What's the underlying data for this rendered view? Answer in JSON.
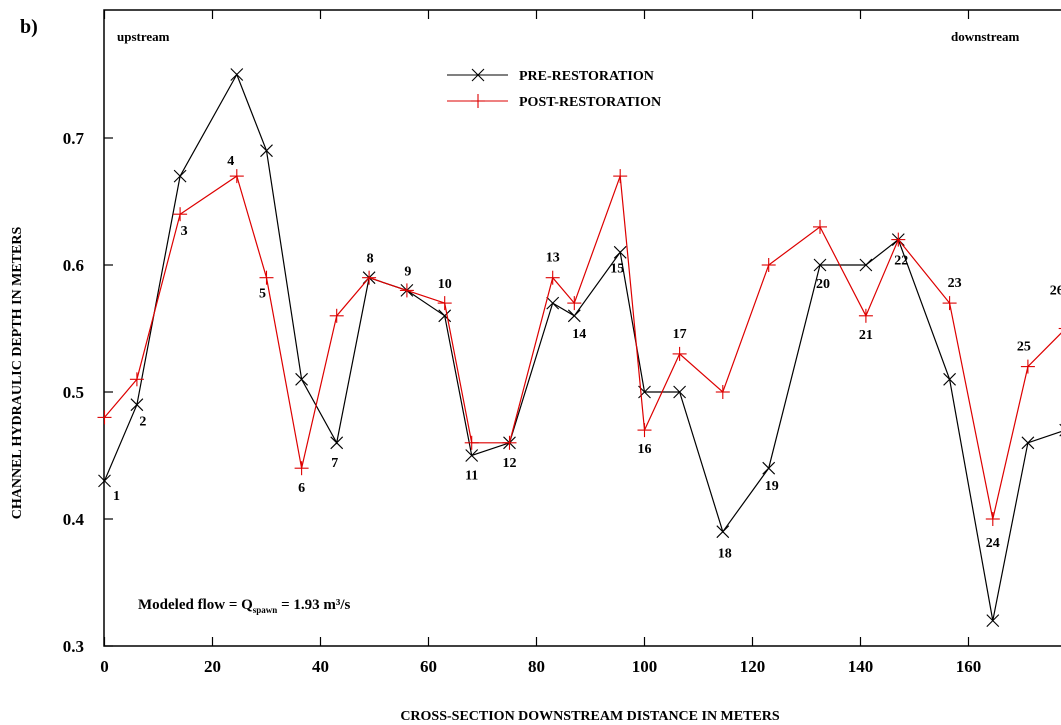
{
  "panel_label": "b)",
  "upstream_label": "upstream",
  "downstream_label": "downstream",
  "note": {
    "prefix": "Modeled flow = Q",
    "subscript": "spawn",
    "suffix": " = 1.93 m³/s"
  },
  "chart_data": {
    "type": "line",
    "xlabel": "CROSS-SECTION DOWNSTREAM DISTANCE IN METERS",
    "ylabel": "CHANNEL HYDRAULIC DEPTH IN METERS",
    "xlim": [
      0,
      178
    ],
    "ylim": [
      0.3,
      0.8
    ],
    "xticks": [
      0,
      20,
      40,
      60,
      80,
      100,
      120,
      140,
      160
    ],
    "yticks": [
      0.3,
      0.4,
      0.5,
      0.6,
      0.7
    ],
    "ytick_labels": [
      "0.3",
      "0.4",
      "0.5",
      "0.6",
      "0.7"
    ],
    "grid": false,
    "legend_position": "top-center",
    "x": [
      0,
      6,
      14,
      24.5,
      30,
      36.5,
      43,
      49,
      56,
      63,
      68,
      75,
      83,
      87,
      95.5,
      100,
      106.5,
      114.5,
      123,
      132.5,
      141,
      147,
      156.5,
      164.5,
      171,
      178
    ],
    "cross_section_labels": [
      "1",
      "2",
      "3",
      "4",
      "5",
      "6",
      "7",
      "8",
      "9",
      "10",
      "11",
      "12",
      "13",
      "14",
      "15",
      "16",
      "17",
      "18",
      "19",
      "20",
      "21",
      "22",
      "23",
      "24",
      "25",
      "26"
    ],
    "series": [
      {
        "name": "PRE-RESTORATION",
        "color": "#000000",
        "marker": "x",
        "values": [
          0.43,
          0.49,
          0.67,
          0.75,
          0.69,
          0.51,
          0.46,
          0.59,
          0.58,
          0.56,
          0.45,
          0.46,
          0.57,
          0.56,
          0.61,
          0.5,
          0.5,
          0.39,
          0.44,
          0.6,
          0.6,
          0.62,
          0.51,
          0.32,
          0.46,
          0.47
        ]
      },
      {
        "name": "POST-RESTORATION",
        "color": "#dd0000",
        "marker": "+",
        "values": [
          0.48,
          0.51,
          0.64,
          0.67,
          0.59,
          0.44,
          0.56,
          0.59,
          0.58,
          0.57,
          0.46,
          0.46,
          0.59,
          0.57,
          0.67,
          0.47,
          0.53,
          0.5,
          0.6,
          0.63,
          0.56,
          0.62,
          0.57,
          0.4,
          0.52,
          0.55
        ]
      }
    ]
  }
}
